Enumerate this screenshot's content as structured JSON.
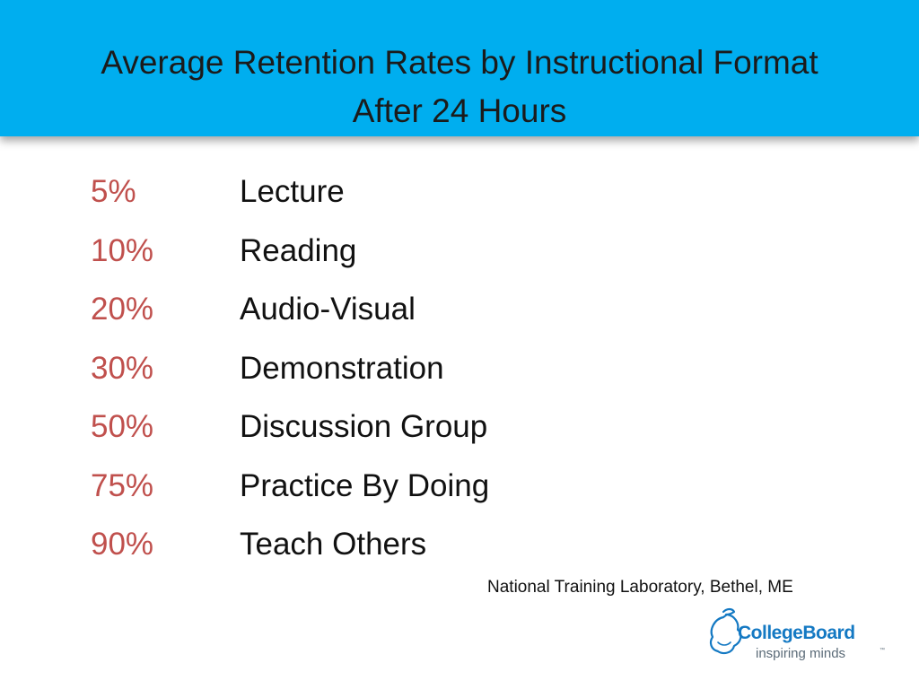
{
  "title": {
    "line1": "Average Retention Rates by Instructional Format",
    "line2": "After 24 Hours"
  },
  "rows": [
    {
      "percent": "5%",
      "format": "Lecture"
    },
    {
      "percent": "10%",
      "format": "Reading"
    },
    {
      "percent": "20%",
      "format": "Audio-Visual"
    },
    {
      "percent": "30%",
      "format": "Demonstration"
    },
    {
      "percent": "50%",
      "format": "Discussion Group"
    },
    {
      "percent": "75%",
      "format": "Practice By Doing"
    },
    {
      "percent": "90%",
      "format": "Teach Others"
    }
  ],
  "source": "National Training Laboratory, Bethel, ME",
  "logo": {
    "brand": "CollegeBoard",
    "tagline": "inspiring minds",
    "tm": "™"
  },
  "colors": {
    "header_bg": "#00aeef",
    "percent_text": "#c0504d",
    "body_text": "#111111",
    "logo_blue": "#1479c3"
  }
}
